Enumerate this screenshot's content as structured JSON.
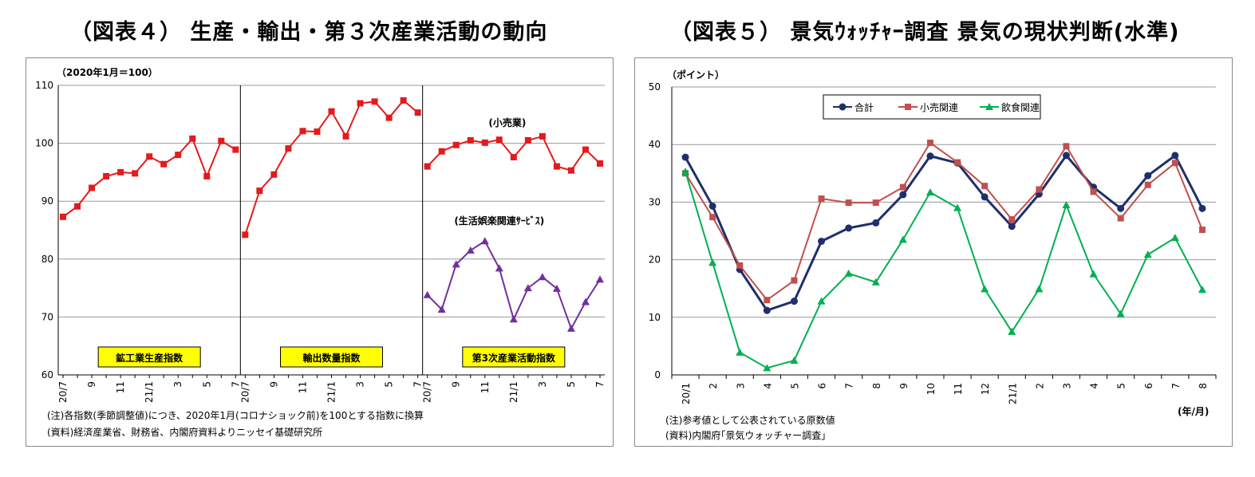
{
  "chart4": {
    "title": "（図表４） 生産・輸出・第３次産業活動の動向",
    "unit": "（2020年1月＝100）",
    "ylim": [
      60,
      110
    ],
    "y_ticks": [
      "60",
      "70",
      "80",
      "90",
      "100",
      "110"
    ],
    "note": "(注)各指数(季節調整値)につき、2020年1月(コロナショック前)を100とする指数に換算",
    "source": "(資料)経済産業省、財務省、内閣府資料よりニッセイ基礎研究所",
    "color_red": "#e41a1c",
    "color_purple": "#7030a0",
    "label_bg": "#ffff00",
    "panels": [
      {
        "label": "鉱工業生産指数",
        "x_ticks": [
          "20/7",
          "9",
          "11",
          "21/1",
          "3",
          "5",
          "7"
        ],
        "series": [
          {
            "values": [
              87.3,
              89.1,
              92.3,
              94.3,
              95.0,
              94.8,
              97.7,
              96.4,
              98.0,
              100.8,
              94.3,
              100.4,
              98.9
            ]
          }
        ]
      },
      {
        "label": "輸出数量指数",
        "x_ticks": [
          "20/7",
          "9",
          "11",
          "21/1",
          "3",
          "5",
          "7"
        ],
        "series": [
          {
            "values": [
              84.2,
              91.8,
              94.6,
              99.1,
              102.1,
              102.0,
              105.5,
              101.2,
              106.9,
              107.2,
              104.4,
              107.4,
              105.3
            ]
          }
        ]
      },
      {
        "label": "第3次産業活動指数",
        "x_ticks": [
          "20/7",
          "9",
          "11",
          "21/1",
          "3",
          "5",
          "7"
        ],
        "series": [
          {
            "name": "(小売業)",
            "values": [
              96.0,
              98.6,
              99.7,
              100.5,
              100.1,
              100.6,
              97.6,
              100.5,
              101.2,
              96.0,
              95.3,
              98.9,
              96.5
            ]
          },
          {
            "name": "(生活娯楽関連ｻｰﾋﾞｽ)",
            "values": [
              73.8,
              71.3,
              79.1,
              81.5,
              83.1,
              78.4,
              69.6,
              75.0,
              76.9,
              74.9,
              68.0,
              72.6,
              76.5
            ]
          }
        ]
      }
    ]
  },
  "chart5": {
    "title": "（図表５） 景気ｳｫｯﾁｬｰ調査 景気の現状判断(水準)",
    "unit": "（ポイント）",
    "xunit": "(年/月)",
    "ylim": [
      0,
      50
    ],
    "y_ticks": [
      "0",
      "10",
      "20",
      "30",
      "40",
      "50"
    ],
    "x_ticks": [
      "20/1",
      "2",
      "3",
      "4",
      "5",
      "6",
      "7",
      "8",
      "9",
      "10",
      "11",
      "12",
      "21/1",
      "2",
      "3",
      "4",
      "5",
      "6",
      "7",
      "8"
    ],
    "note": "(注)参考値として公表されている原数値",
    "source": "(資料)内閣府｢景気ウォッチャー調査｣",
    "series": [
      {
        "name": "合計",
        "color": "#1f2f6b",
        "marker": "circle",
        "values": [
          37.8,
          29.3,
          18.3,
          11.2,
          12.8,
          23.2,
          25.5,
          26.4,
          31.3,
          38.0,
          36.8,
          30.9,
          25.8,
          31.4,
          38.1,
          32.6,
          28.9,
          34.6,
          38.1,
          28.9
        ]
      },
      {
        "name": "小売関連",
        "color": "#c0504d",
        "marker": "square",
        "values": [
          35.0,
          27.4,
          19.0,
          13.0,
          16.4,
          30.6,
          29.9,
          29.9,
          32.6,
          40.3,
          36.9,
          32.8,
          27.0,
          32.2,
          39.7,
          31.8,
          27.2,
          33.0,
          36.8,
          25.2
        ]
      },
      {
        "name": "飲食関連",
        "color": "#00b050",
        "marker": "triangle",
        "values": [
          35.3,
          19.5,
          3.9,
          1.2,
          2.5,
          12.8,
          17.6,
          16.1,
          23.5,
          31.7,
          29.0,
          14.9,
          7.5,
          14.9,
          29.5,
          17.5,
          10.6,
          20.9,
          23.8,
          14.8
        ]
      }
    ]
  }
}
